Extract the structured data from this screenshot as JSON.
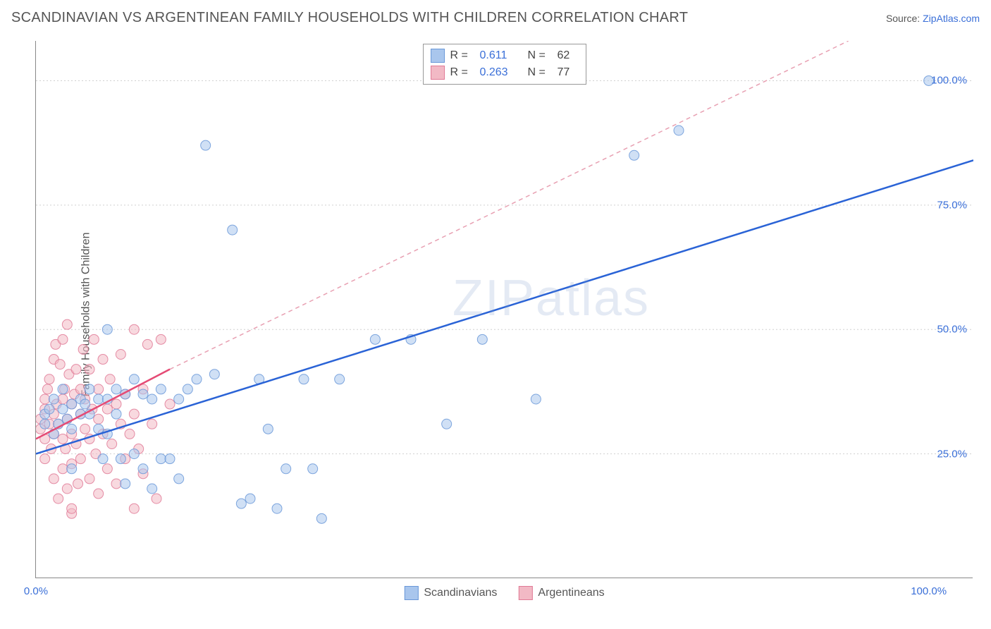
{
  "header": {
    "title": "SCANDINAVIAN VS ARGENTINEAN FAMILY HOUSEHOLDS WITH CHILDREN CORRELATION CHART",
    "source_prefix": "Source: ",
    "source_link": "ZipAtlas.com"
  },
  "watermark": "ZIPatlas",
  "chart": {
    "type": "scatter",
    "background_color": "#ffffff",
    "grid_color": "#d0d0d0",
    "axis_color": "#888888",
    "point_radius": 7,
    "point_opacity": 0.55,
    "point_stroke_opacity": 0.85,
    "line_width": 2.5,
    "xlim": [
      0,
      105
    ],
    "ylim": [
      0,
      108
    ],
    "x_gridlines": [
      10,
      20,
      30,
      40,
      50,
      60,
      70,
      80,
      90,
      100
    ],
    "y_gridlines": [
      25,
      50,
      75,
      100
    ],
    "xtick_labels": [
      {
        "pos": 0,
        "label": "0.0%"
      },
      {
        "pos": 100,
        "label": "100.0%"
      }
    ],
    "ytick_labels": [
      {
        "pos": 25,
        "label": "25.0%"
      },
      {
        "pos": 50,
        "label": "50.0%"
      },
      {
        "pos": 75,
        "label": "75.0%"
      },
      {
        "pos": 100,
        "label": "100.0%"
      }
    ],
    "ylabel": "Family Households with Children"
  },
  "stats_legend": {
    "rows": [
      {
        "swatch": "#a9c6ed",
        "border": "#6a98d8",
        "r_label": "R =",
        "r_value": "0.611",
        "n_label": "N =",
        "n_value": "62"
      },
      {
        "swatch": "#f2b9c5",
        "border": "#e07a96",
        "r_label": "R =",
        "r_value": "0.263",
        "n_label": "N =",
        "n_value": "77"
      }
    ]
  },
  "series_legend": {
    "items": [
      {
        "swatch": "#a9c6ed",
        "border": "#6a98d8",
        "label": "Scandinavians"
      },
      {
        "swatch": "#f2b9c5",
        "border": "#e07a96",
        "label": "Argentineans"
      }
    ]
  },
  "series": {
    "scandinavians": {
      "fill": "#a9c6ed",
      "stroke": "#6a98d8",
      "points": [
        [
          1,
          31
        ],
        [
          1,
          33
        ],
        [
          1.5,
          34
        ],
        [
          2,
          29
        ],
        [
          2,
          36
        ],
        [
          2.5,
          31
        ],
        [
          3,
          34
        ],
        [
          3,
          38
        ],
        [
          3.5,
          32
        ],
        [
          4,
          30
        ],
        [
          4,
          35
        ],
        [
          4,
          22
        ],
        [
          5,
          33
        ],
        [
          5,
          36
        ],
        [
          5.5,
          35
        ],
        [
          6,
          38
        ],
        [
          6,
          33
        ],
        [
          7,
          36
        ],
        [
          7,
          30
        ],
        [
          7.5,
          24
        ],
        [
          8,
          36
        ],
        [
          8,
          50
        ],
        [
          8,
          29
        ],
        [
          9,
          38
        ],
        [
          9,
          33
        ],
        [
          9.5,
          24
        ],
        [
          10,
          37
        ],
        [
          10,
          19
        ],
        [
          11,
          40
        ],
        [
          11,
          25
        ],
        [
          12,
          37
        ],
        [
          12,
          22
        ],
        [
          13,
          36
        ],
        [
          13,
          18
        ],
        [
          14,
          24
        ],
        [
          14,
          38
        ],
        [
          15,
          24
        ],
        [
          16,
          36
        ],
        [
          16,
          20
        ],
        [
          17,
          38
        ],
        [
          18,
          40
        ],
        [
          19,
          87
        ],
        [
          20,
          41
        ],
        [
          22,
          70
        ],
        [
          23,
          15
        ],
        [
          24,
          16
        ],
        [
          25,
          40
        ],
        [
          26,
          30
        ],
        [
          27,
          14
        ],
        [
          28,
          22
        ],
        [
          30,
          40
        ],
        [
          31,
          22
        ],
        [
          32,
          12
        ],
        [
          34,
          40
        ],
        [
          38,
          48
        ],
        [
          42,
          48
        ],
        [
          46,
          31
        ],
        [
          50,
          48
        ],
        [
          56,
          36
        ],
        [
          67,
          85
        ],
        [
          72,
          90
        ],
        [
          100,
          100
        ]
      ],
      "trend": {
        "x1": 0,
        "y1": 25,
        "x2": 105,
        "y2": 84,
        "color": "#2a63d6",
        "dash": "0"
      }
    },
    "argentineans": {
      "fill": "#f2b9c5",
      "stroke": "#e07a96",
      "points": [
        [
          0.5,
          30
        ],
        [
          0.5,
          32
        ],
        [
          1,
          28
        ],
        [
          1,
          34
        ],
        [
          1,
          36
        ],
        [
          1,
          24
        ],
        [
          1.3,
          38
        ],
        [
          1.5,
          31
        ],
        [
          1.5,
          40
        ],
        [
          1.7,
          26
        ],
        [
          2,
          33
        ],
        [
          2,
          44
        ],
        [
          2,
          29
        ],
        [
          2,
          20
        ],
        [
          2.2,
          47
        ],
        [
          2.3,
          35
        ],
        [
          2.5,
          31
        ],
        [
          2.5,
          16
        ],
        [
          2.7,
          43
        ],
        [
          3,
          36
        ],
        [
          3,
          28
        ],
        [
          3,
          22
        ],
        [
          3,
          48
        ],
        [
          3.2,
          38
        ],
        [
          3.3,
          26
        ],
        [
          3.5,
          32
        ],
        [
          3.5,
          18
        ],
        [
          3.5,
          51
        ],
        [
          3.7,
          41
        ],
        [
          4,
          35
        ],
        [
          4,
          29
        ],
        [
          4,
          23
        ],
        [
          4,
          13
        ],
        [
          4.3,
          37
        ],
        [
          4.5,
          42
        ],
        [
          4.5,
          27
        ],
        [
          4.7,
          19
        ],
        [
          5,
          33
        ],
        [
          5,
          38
        ],
        [
          5,
          24
        ],
        [
          5.3,
          46
        ],
        [
          5.5,
          30
        ],
        [
          5.5,
          36
        ],
        [
          6,
          28
        ],
        [
          6,
          42
        ],
        [
          6,
          20
        ],
        [
          6.3,
          34
        ],
        [
          6.5,
          48
        ],
        [
          6.7,
          25
        ],
        [
          7,
          32
        ],
        [
          7,
          38
        ],
        [
          7,
          17
        ],
        [
          7.5,
          29
        ],
        [
          7.5,
          44
        ],
        [
          8,
          34
        ],
        [
          8,
          22
        ],
        [
          8.3,
          40
        ],
        [
          8.5,
          27
        ],
        [
          9,
          35
        ],
        [
          9,
          19
        ],
        [
          9.5,
          31
        ],
        [
          9.5,
          45
        ],
        [
          10,
          37
        ],
        [
          10,
          24
        ],
        [
          10.5,
          29
        ],
        [
          11,
          33
        ],
        [
          11,
          50
        ],
        [
          11.5,
          26
        ],
        [
          12,
          38
        ],
        [
          12,
          21
        ],
        [
          12.5,
          47
        ],
        [
          13,
          31
        ],
        [
          13.5,
          16
        ],
        [
          14,
          48
        ],
        [
          15,
          35
        ],
        [
          11,
          14
        ],
        [
          4,
          14
        ]
      ],
      "trend_solid": {
        "x1": 0,
        "y1": 28,
        "x2": 15,
        "y2": 42,
        "color": "#e54b75",
        "dash": "0"
      },
      "trend_dash": {
        "x1": 15,
        "y1": 42,
        "x2": 91,
        "y2": 108,
        "color": "#e8a0b2",
        "dash": "6,5"
      }
    }
  }
}
